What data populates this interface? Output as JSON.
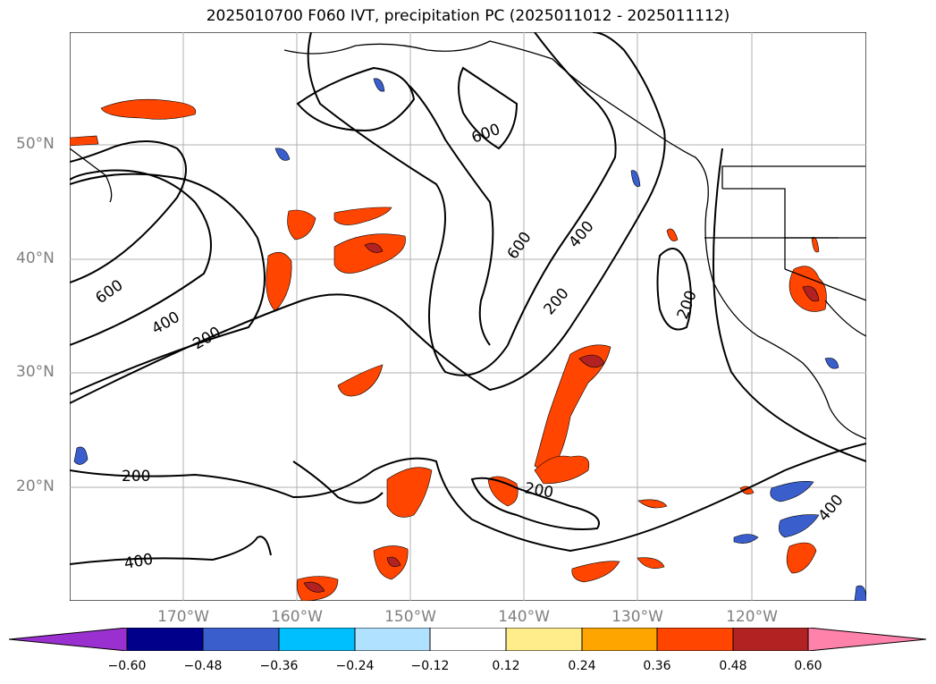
{
  "title": "2025010700 F060 IVT, precipitation PC (2025011012 - 2025011112)",
  "map": {
    "region": "North Pacific / Western North America",
    "lat_labels": [
      "50°N",
      "40°N",
      "30°N",
      "20°N"
    ],
    "lon_labels": [
      "170°W",
      "160°W",
      "150°W",
      "140°W",
      "130°W",
      "120°W"
    ],
    "contour_labels": [
      "600",
      "600",
      "400",
      "200",
      "600",
      "400",
      "200",
      "200",
      "200",
      "400",
      "200",
      "400"
    ],
    "contour_levels": [
      200,
      400,
      600
    ],
    "colors": {
      "contour": "#000000",
      "grid": "#b0b0b0",
      "coast": "#000000"
    }
  },
  "colorbar": {
    "ticks": [
      "−0.60",
      "−0.48",
      "−0.36",
      "−0.24",
      "−0.12",
      "0.12",
      "0.24",
      "0.36",
      "0.48",
      "0.60"
    ],
    "colors": [
      "#9b30d0",
      "#00008b",
      "#3a5fcd",
      "#00bfff",
      "#b0e2ff",
      "#ffffff",
      "#ffec8b",
      "#ffa500",
      "#ff4500",
      "#b22222",
      "#ff82ab"
    ]
  }
}
